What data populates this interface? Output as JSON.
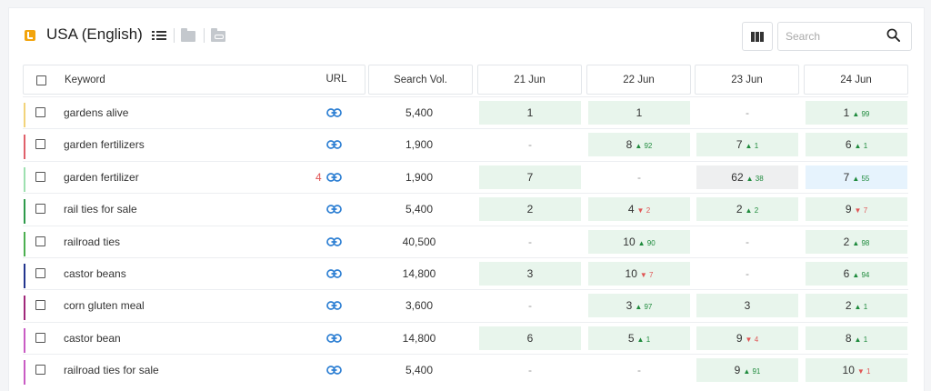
{
  "header": {
    "title": "USA (English)",
    "search_placeholder": "Search",
    "icons": [
      "bing-icon",
      "list-view-icon",
      "folder-icon",
      "link-folder-icon",
      "columns-icon",
      "search-icon"
    ]
  },
  "colors": {
    "up": "#1e8a3c",
    "down": "#e05555",
    "link": "#2d7fd3",
    "cell_green": "#e8f5ec",
    "cell_grey": "#eeeff0",
    "cell_blue": "#e6f3fd"
  },
  "columns": {
    "keyword": "Keyword",
    "url": "URL",
    "volume": "Search Vol.",
    "dates": [
      "21 Jun",
      "22 Jun",
      "23 Jun",
      "24 Jun"
    ]
  },
  "rows": [
    {
      "keyword": "gardens alive",
      "url_badge": "",
      "volume": "5,400",
      "bar_color": "#f2d37a",
      "ranks": [
        {
          "value": "1",
          "change": "",
          "dir": "",
          "bg": "green"
        },
        {
          "value": "1",
          "change": "",
          "dir": "",
          "bg": "green"
        },
        {
          "value": "-",
          "change": "",
          "dir": "",
          "bg": "none"
        },
        {
          "value": "1",
          "change": "99",
          "dir": "up",
          "bg": "green"
        }
      ]
    },
    {
      "keyword": "garden fertilizers",
      "url_badge": "",
      "volume": "1,900",
      "bar_color": "#e0606a",
      "ranks": [
        {
          "value": "-",
          "change": "",
          "dir": "",
          "bg": "none"
        },
        {
          "value": "8",
          "change": "92",
          "dir": "up",
          "bg": "green"
        },
        {
          "value": "7",
          "change": "1",
          "dir": "up",
          "bg": "green"
        },
        {
          "value": "6",
          "change": "1",
          "dir": "up",
          "bg": "green"
        }
      ]
    },
    {
      "keyword": "garden fertilizer",
      "url_badge": "4",
      "volume": "1,900",
      "bar_color": "#9ee0b0",
      "ranks": [
        {
          "value": "7",
          "change": "",
          "dir": "",
          "bg": "green"
        },
        {
          "value": "-",
          "change": "",
          "dir": "",
          "bg": "none"
        },
        {
          "value": "62",
          "change": "38",
          "dir": "up",
          "bg": "grey"
        },
        {
          "value": "7",
          "change": "55",
          "dir": "up",
          "bg": "blue"
        }
      ]
    },
    {
      "keyword": "rail ties for sale",
      "url_badge": "",
      "volume": "5,400",
      "bar_color": "#2e9a4a",
      "ranks": [
        {
          "value": "2",
          "change": "",
          "dir": "",
          "bg": "green"
        },
        {
          "value": "4",
          "change": "2",
          "dir": "down",
          "bg": "green"
        },
        {
          "value": "2",
          "change": "2",
          "dir": "up",
          "bg": "green"
        },
        {
          "value": "9",
          "change": "7",
          "dir": "down",
          "bg": "green"
        }
      ]
    },
    {
      "keyword": "railroad ties",
      "url_badge": "",
      "volume": "40,500",
      "bar_color": "#4caf50",
      "ranks": [
        {
          "value": "-",
          "change": "",
          "dir": "",
          "bg": "none"
        },
        {
          "value": "10",
          "change": "90",
          "dir": "up",
          "bg": "green"
        },
        {
          "value": "-",
          "change": "",
          "dir": "",
          "bg": "none"
        },
        {
          "value": "2",
          "change": "98",
          "dir": "up",
          "bg": "green"
        }
      ]
    },
    {
      "keyword": "castor beans",
      "url_badge": "",
      "volume": "14,800",
      "bar_color": "#23358e",
      "ranks": [
        {
          "value": "3",
          "change": "",
          "dir": "",
          "bg": "green"
        },
        {
          "value": "10",
          "change": "7",
          "dir": "down",
          "bg": "green"
        },
        {
          "value": "-",
          "change": "",
          "dir": "",
          "bg": "none"
        },
        {
          "value": "6",
          "change": "94",
          "dir": "up",
          "bg": "green"
        }
      ]
    },
    {
      "keyword": "corn gluten meal",
      "url_badge": "",
      "volume": "3,600",
      "bar_color": "#a0287a",
      "ranks": [
        {
          "value": "-",
          "change": "",
          "dir": "",
          "bg": "none"
        },
        {
          "value": "3",
          "change": "97",
          "dir": "up",
          "bg": "green"
        },
        {
          "value": "3",
          "change": "",
          "dir": "",
          "bg": "green"
        },
        {
          "value": "2",
          "change": "1",
          "dir": "up",
          "bg": "green"
        }
      ]
    },
    {
      "keyword": "castor bean",
      "url_badge": "",
      "volume": "14,800",
      "bar_color": "#c95cc4",
      "ranks": [
        {
          "value": "6",
          "change": "",
          "dir": "",
          "bg": "green"
        },
        {
          "value": "5",
          "change": "1",
          "dir": "up",
          "bg": "green"
        },
        {
          "value": "9",
          "change": "4",
          "dir": "down",
          "bg": "green"
        },
        {
          "value": "8",
          "change": "1",
          "dir": "up",
          "bg": "green"
        }
      ]
    },
    {
      "keyword": "railroad ties for sale",
      "url_badge": "",
      "volume": "5,400",
      "bar_color": "#c95cc4",
      "ranks": [
        {
          "value": "-",
          "change": "",
          "dir": "",
          "bg": "none"
        },
        {
          "value": "-",
          "change": "",
          "dir": "",
          "bg": "none"
        },
        {
          "value": "9",
          "change": "91",
          "dir": "up",
          "bg": "green"
        },
        {
          "value": "10",
          "change": "1",
          "dir": "down",
          "bg": "green"
        }
      ]
    }
  ]
}
